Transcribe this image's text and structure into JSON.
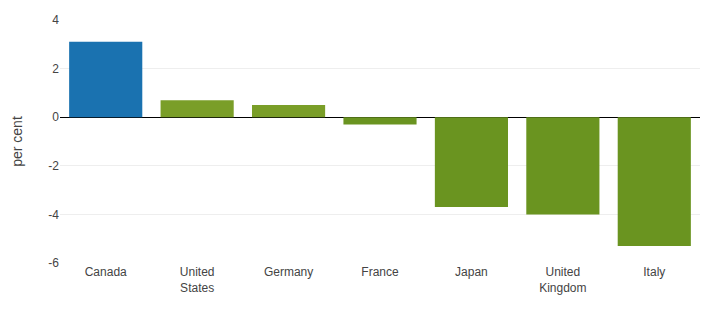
{
  "chart_data": {
    "type": "bar",
    "categories": [
      "Canada",
      "United\nStates",
      "Germany",
      "France",
      "Japan",
      "United\nKingdom",
      "Italy"
    ],
    "values": [
      3.1,
      0.7,
      0.5,
      -0.3,
      -3.7,
      -4.0,
      -5.3
    ],
    "colors": [
      "#1A72B0",
      "#7A9E28",
      "#7A9E28",
      "#6A9420",
      "#6A9420",
      "#6A9420",
      "#6A9420"
    ],
    "ylabel": "per cent",
    "ylim": [
      -6,
      4
    ],
    "yticks": [
      -6,
      -4,
      -2,
      0,
      2,
      4
    ],
    "grid": true
  }
}
